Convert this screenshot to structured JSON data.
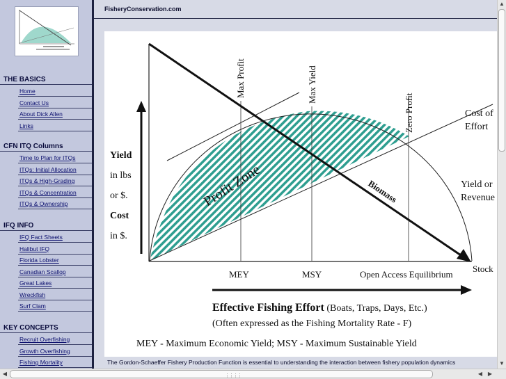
{
  "site": {
    "title": "FisheryConservation.com"
  },
  "sidebar": {
    "sections": [
      {
        "title": "THE BASICS",
        "links": [
          "Home",
          "Contact Us",
          "About Dick Allen",
          "Links"
        ]
      },
      {
        "title": "CFN ITQ Columns",
        "links": [
          "Time to Plan for ITQs",
          "ITQs: Initial Allocation",
          "ITQs & High-Grading",
          "ITQs & Concentration",
          "ITQs & Ownership"
        ]
      },
      {
        "title": "IFQ INFO",
        "links": [
          "IFQ Fact Sheets",
          "Halibut IFQ",
          "Florida Lobster",
          "Canadian Scallop",
          "Great Lakes",
          "Wreckfish",
          "Surf Clam"
        ]
      },
      {
        "title": "KEY CONCEPTS",
        "links": [
          "Recruit Overfishing",
          "Growth Overfishing",
          "Fishing Mortality"
        ]
      }
    ]
  },
  "figure": {
    "verticals": [
      "Max Profit",
      "Max Yield",
      "Zero Profit"
    ],
    "ylabel": {
      "l1": "Yield",
      "l2": "in lbs",
      "l3": "or $.",
      "l4": "Cost",
      "l5": "in $."
    },
    "cost_label": {
      "l1": "Cost of",
      "l2": "Effort"
    },
    "yield_label": {
      "l1": "Yield or",
      "l2": "Revenue"
    },
    "profit_zone": "Profit Zone",
    "biomass": "Biomass",
    "stock": "Stock",
    "x_points": [
      "MEY",
      "MSY",
      "Open Access Equilibrium"
    ],
    "xlabel_bold": "Effective Fishing Effort",
    "xlabel_rest": " (Boats, Traps, Days, Etc.)",
    "xlabel_sub": "(Often expressed as the Fishing Mortality Rate - F)",
    "footnote": "MEY - Maximum Economic Yield; MSY - Maximum Sustainable Yield"
  },
  "caption": "The Gordon-Schaeffer Fishery Production Function is essential to understanding the interaction between fishery population dynamics",
  "colors": {
    "hatch": "#2e9e90",
    "sidebar_bg": "#c3c8de",
    "link": "#0b0f6e"
  }
}
